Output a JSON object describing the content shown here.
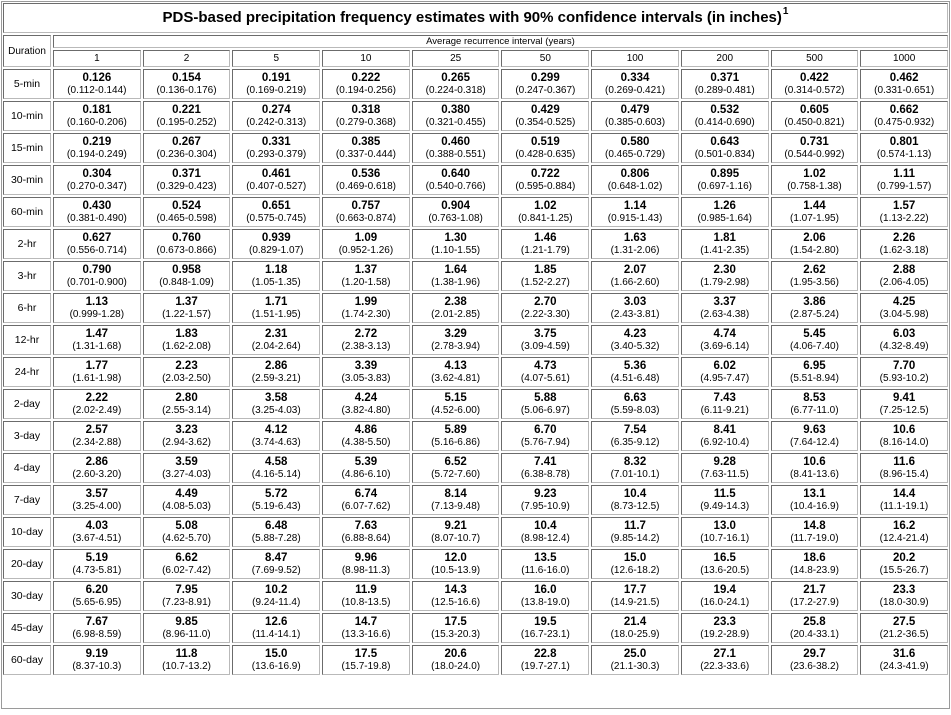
{
  "title": "PDS-based precipitation frequency estimates with 90% confidence intervals (in inches)",
  "title_footnote": "1",
  "header": {
    "duration": "Duration",
    "group": "Average recurrence interval (years)",
    "intervals": [
      "1",
      "2",
      "5",
      "10",
      "25",
      "50",
      "100",
      "200",
      "500",
      "1000"
    ]
  },
  "rows": [
    {
      "duration": "5-min",
      "cells": [
        [
          "0.126",
          "(0.112-0.144)"
        ],
        [
          "0.154",
          "(0.136-0.176)"
        ],
        [
          "0.191",
          "(0.169-0.219)"
        ],
        [
          "0.222",
          "(0.194-0.256)"
        ],
        [
          "0.265",
          "(0.224-0.318)"
        ],
        [
          "0.299",
          "(0.247-0.367)"
        ],
        [
          "0.334",
          "(0.269-0.421)"
        ],
        [
          "0.371",
          "(0.289-0.481)"
        ],
        [
          "0.422",
          "(0.314-0.572)"
        ],
        [
          "0.462",
          "(0.331-0.651)"
        ]
      ]
    },
    {
      "duration": "10-min",
      "cells": [
        [
          "0.181",
          "(0.160-0.206)"
        ],
        [
          "0.221",
          "(0.195-0.252)"
        ],
        [
          "0.274",
          "(0.242-0.313)"
        ],
        [
          "0.318",
          "(0.279-0.368)"
        ],
        [
          "0.380",
          "(0.321-0.455)"
        ],
        [
          "0.429",
          "(0.354-0.525)"
        ],
        [
          "0.479",
          "(0.385-0.603)"
        ],
        [
          "0.532",
          "(0.414-0.690)"
        ],
        [
          "0.605",
          "(0.450-0.821)"
        ],
        [
          "0.662",
          "(0.475-0.932)"
        ]
      ]
    },
    {
      "duration": "15-min",
      "cells": [
        [
          "0.219",
          "(0.194-0.249)"
        ],
        [
          "0.267",
          "(0.236-0.304)"
        ],
        [
          "0.331",
          "(0.293-0.379)"
        ],
        [
          "0.385",
          "(0.337-0.444)"
        ],
        [
          "0.460",
          "(0.388-0.551)"
        ],
        [
          "0.519",
          "(0.428-0.635)"
        ],
        [
          "0.580",
          "(0.465-0.729)"
        ],
        [
          "0.643",
          "(0.501-0.834)"
        ],
        [
          "0.731",
          "(0.544-0.992)"
        ],
        [
          "0.801",
          "(0.574-1.13)"
        ]
      ]
    },
    {
      "duration": "30-min",
      "cells": [
        [
          "0.304",
          "(0.270-0.347)"
        ],
        [
          "0.371",
          "(0.329-0.423)"
        ],
        [
          "0.461",
          "(0.407-0.527)"
        ],
        [
          "0.536",
          "(0.469-0.618)"
        ],
        [
          "0.640",
          "(0.540-0.766)"
        ],
        [
          "0.722",
          "(0.595-0.884)"
        ],
        [
          "0.806",
          "(0.648-1.02)"
        ],
        [
          "0.895",
          "(0.697-1.16)"
        ],
        [
          "1.02",
          "(0.758-1.38)"
        ],
        [
          "1.11",
          "(0.799-1.57)"
        ]
      ]
    },
    {
      "duration": "60-min",
      "cells": [
        [
          "0.430",
          "(0.381-0.490)"
        ],
        [
          "0.524",
          "(0.465-0.598)"
        ],
        [
          "0.651",
          "(0.575-0.745)"
        ],
        [
          "0.757",
          "(0.663-0.874)"
        ],
        [
          "0.904",
          "(0.763-1.08)"
        ],
        [
          "1.02",
          "(0.841-1.25)"
        ],
        [
          "1.14",
          "(0.915-1.43)"
        ],
        [
          "1.26",
          "(0.985-1.64)"
        ],
        [
          "1.44",
          "(1.07-1.95)"
        ],
        [
          "1.57",
          "(1.13-2.22)"
        ]
      ]
    },
    {
      "duration": "2-hr",
      "cells": [
        [
          "0.627",
          "(0.556-0.714)"
        ],
        [
          "0.760",
          "(0.673-0.866)"
        ],
        [
          "0.939",
          "(0.829-1.07)"
        ],
        [
          "1.09",
          "(0.952-1.26)"
        ],
        [
          "1.30",
          "(1.10-1.55)"
        ],
        [
          "1.46",
          "(1.21-1.79)"
        ],
        [
          "1.63",
          "(1.31-2.06)"
        ],
        [
          "1.81",
          "(1.41-2.35)"
        ],
        [
          "2.06",
          "(1.54-2.80)"
        ],
        [
          "2.26",
          "(1.62-3.18)"
        ]
      ]
    },
    {
      "duration": "3-hr",
      "cells": [
        [
          "0.790",
          "(0.701-0.900)"
        ],
        [
          "0.958",
          "(0.848-1.09)"
        ],
        [
          "1.18",
          "(1.05-1.35)"
        ],
        [
          "1.37",
          "(1.20-1.58)"
        ],
        [
          "1.64",
          "(1.38-1.96)"
        ],
        [
          "1.85",
          "(1.52-2.27)"
        ],
        [
          "2.07",
          "(1.66-2.60)"
        ],
        [
          "2.30",
          "(1.79-2.98)"
        ],
        [
          "2.62",
          "(1.95-3.56)"
        ],
        [
          "2.88",
          "(2.06-4.05)"
        ]
      ]
    },
    {
      "duration": "6-hr",
      "cells": [
        [
          "1.13",
          "(0.999-1.28)"
        ],
        [
          "1.37",
          "(1.22-1.57)"
        ],
        [
          "1.71",
          "(1.51-1.95)"
        ],
        [
          "1.99",
          "(1.74-2.30)"
        ],
        [
          "2.38",
          "(2.01-2.85)"
        ],
        [
          "2.70",
          "(2.22-3.30)"
        ],
        [
          "3.03",
          "(2.43-3.81)"
        ],
        [
          "3.37",
          "(2.63-4.38)"
        ],
        [
          "3.86",
          "(2.87-5.24)"
        ],
        [
          "4.25",
          "(3.04-5.98)"
        ]
      ]
    },
    {
      "duration": "12-hr",
      "cells": [
        [
          "1.47",
          "(1.31-1.68)"
        ],
        [
          "1.83",
          "(1.62-2.08)"
        ],
        [
          "2.31",
          "(2.04-2.64)"
        ],
        [
          "2.72",
          "(2.38-3.13)"
        ],
        [
          "3.29",
          "(2.78-3.94)"
        ],
        [
          "3.75",
          "(3.09-4.59)"
        ],
        [
          "4.23",
          "(3.40-5.32)"
        ],
        [
          "4.74",
          "(3.69-6.14)"
        ],
        [
          "5.45",
          "(4.06-7.40)"
        ],
        [
          "6.03",
          "(4.32-8.49)"
        ]
      ]
    },
    {
      "duration": "24-hr",
      "cells": [
        [
          "1.77",
          "(1.61-1.98)"
        ],
        [
          "2.23",
          "(2.03-2.50)"
        ],
        [
          "2.86",
          "(2.59-3.21)"
        ],
        [
          "3.39",
          "(3.05-3.83)"
        ],
        [
          "4.13",
          "(3.62-4.81)"
        ],
        [
          "4.73",
          "(4.07-5.61)"
        ],
        [
          "5.36",
          "(4.51-6.48)"
        ],
        [
          "6.02",
          "(4.95-7.47)"
        ],
        [
          "6.95",
          "(5.51-8.94)"
        ],
        [
          "7.70",
          "(5.93-10.2)"
        ]
      ]
    },
    {
      "duration": "2-day",
      "cells": [
        [
          "2.22",
          "(2.02-2.49)"
        ],
        [
          "2.80",
          "(2.55-3.14)"
        ],
        [
          "3.58",
          "(3.25-4.03)"
        ],
        [
          "4.24",
          "(3.82-4.80)"
        ],
        [
          "5.15",
          "(4.52-6.00)"
        ],
        [
          "5.88",
          "(5.06-6.97)"
        ],
        [
          "6.63",
          "(5.59-8.03)"
        ],
        [
          "7.43",
          "(6.11-9.21)"
        ],
        [
          "8.53",
          "(6.77-11.0)"
        ],
        [
          "9.41",
          "(7.25-12.5)"
        ]
      ]
    },
    {
      "duration": "3-day",
      "cells": [
        [
          "2.57",
          "(2.34-2.88)"
        ],
        [
          "3.23",
          "(2.94-3.62)"
        ],
        [
          "4.12",
          "(3.74-4.63)"
        ],
        [
          "4.86",
          "(4.38-5.50)"
        ],
        [
          "5.89",
          "(5.16-6.86)"
        ],
        [
          "6.70",
          "(5.76-7.94)"
        ],
        [
          "7.54",
          "(6.35-9.12)"
        ],
        [
          "8.41",
          "(6.92-10.4)"
        ],
        [
          "9.63",
          "(7.64-12.4)"
        ],
        [
          "10.6",
          "(8.16-14.0)"
        ]
      ]
    },
    {
      "duration": "4-day",
      "cells": [
        [
          "2.86",
          "(2.60-3.20)"
        ],
        [
          "3.59",
          "(3.27-4.03)"
        ],
        [
          "4.58",
          "(4.16-5.14)"
        ],
        [
          "5.39",
          "(4.86-6.10)"
        ],
        [
          "6.52",
          "(5.72-7.60)"
        ],
        [
          "7.41",
          "(6.38-8.78)"
        ],
        [
          "8.32",
          "(7.01-10.1)"
        ],
        [
          "9.28",
          "(7.63-11.5)"
        ],
        [
          "10.6",
          "(8.41-13.6)"
        ],
        [
          "11.6",
          "(8.96-15.4)"
        ]
      ]
    },
    {
      "duration": "7-day",
      "cells": [
        [
          "3.57",
          "(3.25-4.00)"
        ],
        [
          "4.49",
          "(4.08-5.03)"
        ],
        [
          "5.72",
          "(5.19-6.43)"
        ],
        [
          "6.74",
          "(6.07-7.62)"
        ],
        [
          "8.14",
          "(7.13-9.48)"
        ],
        [
          "9.23",
          "(7.95-10.9)"
        ],
        [
          "10.4",
          "(8.73-12.5)"
        ],
        [
          "11.5",
          "(9.49-14.3)"
        ],
        [
          "13.1",
          "(10.4-16.9)"
        ],
        [
          "14.4",
          "(11.1-19.1)"
        ]
      ]
    },
    {
      "duration": "10-day",
      "cells": [
        [
          "4.03",
          "(3.67-4.51)"
        ],
        [
          "5.08",
          "(4.62-5.70)"
        ],
        [
          "6.48",
          "(5.88-7.28)"
        ],
        [
          "7.63",
          "(6.88-8.64)"
        ],
        [
          "9.21",
          "(8.07-10.7)"
        ],
        [
          "10.4",
          "(8.98-12.4)"
        ],
        [
          "11.7",
          "(9.85-14.2)"
        ],
        [
          "13.0",
          "(10.7-16.1)"
        ],
        [
          "14.8",
          "(11.7-19.0)"
        ],
        [
          "16.2",
          "(12.4-21.4)"
        ]
      ]
    },
    {
      "duration": "20-day",
      "cells": [
        [
          "5.19",
          "(4.73-5.81)"
        ],
        [
          "6.62",
          "(6.02-7.42)"
        ],
        [
          "8.47",
          "(7.69-9.52)"
        ],
        [
          "9.96",
          "(8.98-11.3)"
        ],
        [
          "12.0",
          "(10.5-13.9)"
        ],
        [
          "13.5",
          "(11.6-16.0)"
        ],
        [
          "15.0",
          "(12.6-18.2)"
        ],
        [
          "16.5",
          "(13.6-20.5)"
        ],
        [
          "18.6",
          "(14.8-23.9)"
        ],
        [
          "20.2",
          "(15.5-26.7)"
        ]
      ]
    },
    {
      "duration": "30-day",
      "cells": [
        [
          "6.20",
          "(5.65-6.95)"
        ],
        [
          "7.95",
          "(7.23-8.91)"
        ],
        [
          "10.2",
          "(9.24-11.4)"
        ],
        [
          "11.9",
          "(10.8-13.5)"
        ],
        [
          "14.3",
          "(12.5-16.6)"
        ],
        [
          "16.0",
          "(13.8-19.0)"
        ],
        [
          "17.7",
          "(14.9-21.5)"
        ],
        [
          "19.4",
          "(16.0-24.1)"
        ],
        [
          "21.7",
          "(17.2-27.9)"
        ],
        [
          "23.3",
          "(18.0-30.9)"
        ]
      ]
    },
    {
      "duration": "45-day",
      "cells": [
        [
          "7.67",
          "(6.98-8.59)"
        ],
        [
          "9.85",
          "(8.96-11.0)"
        ],
        [
          "12.6",
          "(11.4-14.1)"
        ],
        [
          "14.7",
          "(13.3-16.6)"
        ],
        [
          "17.5",
          "(15.3-20.3)"
        ],
        [
          "19.5",
          "(16.7-23.1)"
        ],
        [
          "21.4",
          "(18.0-25.9)"
        ],
        [
          "23.3",
          "(19.2-28.9)"
        ],
        [
          "25.8",
          "(20.4-33.1)"
        ],
        [
          "27.5",
          "(21.2-36.5)"
        ]
      ]
    },
    {
      "duration": "60-day",
      "cells": [
        [
          "9.19",
          "(8.37-10.3)"
        ],
        [
          "11.8",
          "(10.7-13.2)"
        ],
        [
          "15.0",
          "(13.6-16.9)"
        ],
        [
          "17.5",
          "(15.7-19.8)"
        ],
        [
          "20.6",
          "(18.0-24.0)"
        ],
        [
          "22.8",
          "(19.7-27.1)"
        ],
        [
          "25.0",
          "(21.1-30.3)"
        ],
        [
          "27.1",
          "(22.3-33.6)"
        ],
        [
          "29.7",
          "(23.6-38.2)"
        ],
        [
          "31.6",
          "(24.3-41.9)"
        ]
      ]
    }
  ]
}
